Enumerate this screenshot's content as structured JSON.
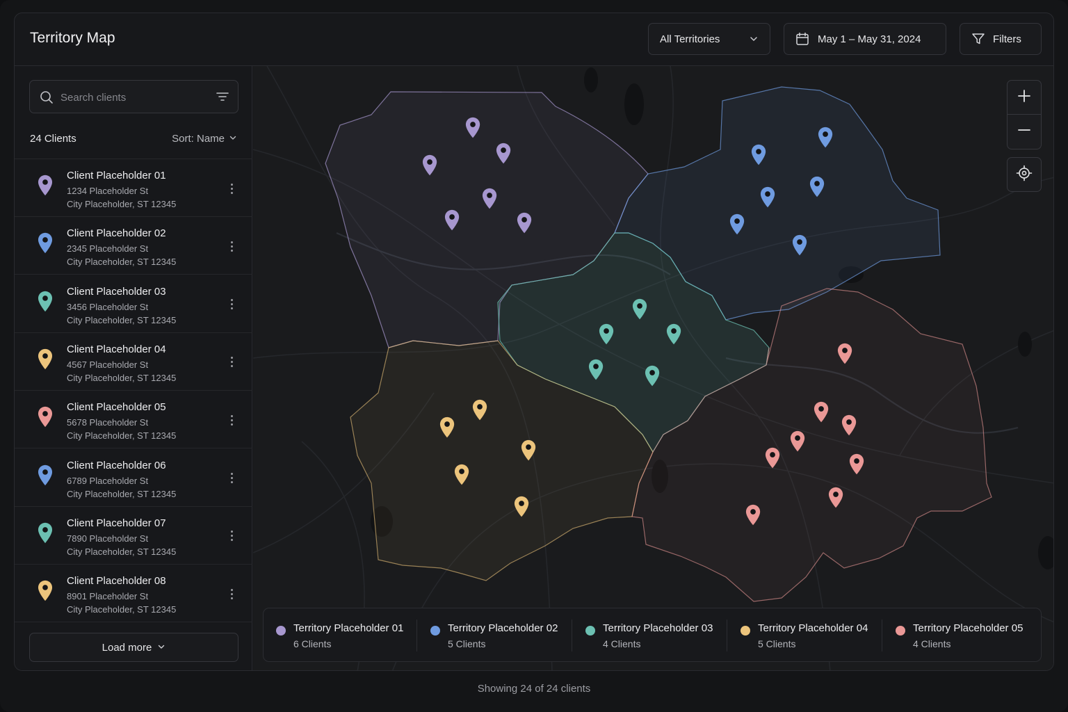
{
  "header": {
    "title": "Territory Map",
    "territory_select": "All Territories",
    "date_range": "May 1 – May 31, 2024",
    "filters_label": "Filters"
  },
  "sidebar": {
    "search_placeholder": "Search clients",
    "client_count": "24 Clients",
    "sort_label": "Sort: Name",
    "load_more": "Load more",
    "clients": [
      {
        "name": "Client Placeholder 01",
        "address": "1234 Placeholder St",
        "city": "City Placeholder, ST 12345",
        "color": "#a797cf"
      },
      {
        "name": "Client Placeholder 02",
        "address": "2345 Placeholder St",
        "city": "City Placeholder, ST 12345",
        "color": "#6f9be0"
      },
      {
        "name": "Client Placeholder 03",
        "address": "3456 Placeholder St",
        "city": "City Placeholder, ST 12345",
        "color": "#6cc0b2"
      },
      {
        "name": "Client Placeholder 04",
        "address": "4567 Placeholder St",
        "city": "City Placeholder, ST 12345",
        "color": "#ecc47c"
      },
      {
        "name": "Client Placeholder 05",
        "address": "5678 Placeholder St",
        "city": "City Placeholder, ST 12345",
        "color": "#ea9896"
      },
      {
        "name": "Client Placeholder 06",
        "address": "6789 Placeholder St",
        "city": "City Placeholder, ST 12345",
        "color": "#6f9be0"
      },
      {
        "name": "Client Placeholder 07",
        "address": "7890 Placeholder St",
        "city": "City Placeholder, ST 12345",
        "color": "#6cc0b2"
      },
      {
        "name": "Client Placeholder 08",
        "address": "8901 Placeholder St",
        "city": "City Placeholder, ST 12345",
        "color": "#ecc47c"
      }
    ]
  },
  "map": {
    "territories": [
      {
        "name": "Territory Placeholder 01",
        "count": "6 Clients",
        "color": "#a797cf"
      },
      {
        "name": "Territory Placeholder 02",
        "count": "5 Clients",
        "color": "#6f9be0"
      },
      {
        "name": "Territory Placeholder 03",
        "count": "4 Clients",
        "color": "#6cc0b2"
      },
      {
        "name": "Territory Placeholder 04",
        "count": "5 Clients",
        "color": "#ecc47c"
      },
      {
        "name": "Territory Placeholder 05",
        "count": "4 Clients",
        "color": "#ea9896"
      }
    ],
    "controls": {
      "zoom_in": "zoom-in-icon",
      "zoom_out": "zoom-out-icon",
      "locate": "locate-icon"
    }
  },
  "footer": {
    "status": "Showing 24 of 24 clients"
  }
}
